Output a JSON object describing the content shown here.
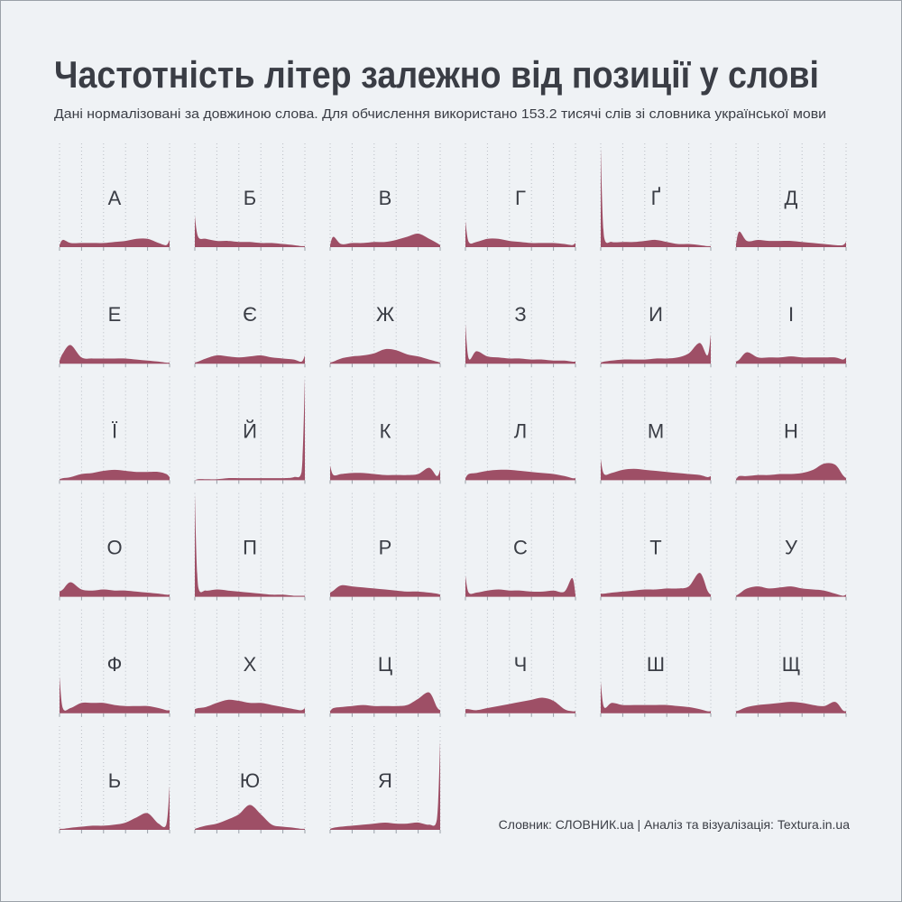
{
  "chart_data": {
    "type": "area",
    "title": "Частотність літер залежно від позиції у слові",
    "subtitle": "Дані нормалізовані за довжиною слова. Для обчислення використано 153.2 тисячі слів зі словника української мови",
    "caption": "Словник: СЛОВНИК.ua | Аналіз та візуалізація: Textura.in.ua",
    "color": "#9e4f66",
    "grid": true,
    "xlim": [
      0,
      1
    ],
    "ylim": [
      0,
      1
    ],
    "xticks": [
      0,
      0.2,
      0.4,
      0.6,
      0.8,
      1
    ],
    "x": [
      0,
      0.03,
      0.1,
      0.2,
      0.3,
      0.4,
      0.5,
      0.6,
      0.7,
      0.8,
      0.9,
      0.97,
      1
    ],
    "series": [
      {
        "name": "А",
        "values": [
          0.02,
          0.07,
          0.04,
          0.04,
          0.04,
          0.04,
          0.05,
          0.06,
          0.08,
          0.08,
          0.04,
          0.02,
          0.07
        ]
      },
      {
        "name": "Б",
        "values": [
          0.3,
          0.1,
          0.08,
          0.06,
          0.06,
          0.05,
          0.05,
          0.04,
          0.04,
          0.03,
          0.02,
          0.01,
          0.01
        ]
      },
      {
        "name": "В",
        "values": [
          0.02,
          0.1,
          0.03,
          0.04,
          0.04,
          0.05,
          0.05,
          0.07,
          0.1,
          0.13,
          0.08,
          0.04,
          0.02
        ]
      },
      {
        "name": "Г",
        "values": [
          0.25,
          0.05,
          0.05,
          0.08,
          0.08,
          0.06,
          0.05,
          0.04,
          0.04,
          0.04,
          0.03,
          0.02,
          0.04
        ]
      },
      {
        "name": "Ґ",
        "values": [
          0.95,
          0.1,
          0.05,
          0.05,
          0.05,
          0.06,
          0.07,
          0.05,
          0.03,
          0.03,
          0.02,
          0.01,
          0.01
        ]
      },
      {
        "name": "Д",
        "values": [
          0.03,
          0.15,
          0.06,
          0.07,
          0.06,
          0.06,
          0.06,
          0.05,
          0.04,
          0.03,
          0.02,
          0.02,
          0.05
        ]
      },
      {
        "name": "Е",
        "values": [
          0.03,
          0.1,
          0.18,
          0.06,
          0.05,
          0.05,
          0.05,
          0.05,
          0.04,
          0.03,
          0.02,
          0.01,
          0.01
        ]
      },
      {
        "name": "Є",
        "values": [
          0.01,
          0.02,
          0.05,
          0.08,
          0.07,
          0.06,
          0.07,
          0.08,
          0.06,
          0.05,
          0.04,
          0.02,
          0.08
        ]
      },
      {
        "name": "Ж",
        "values": [
          0.01,
          0.02,
          0.05,
          0.07,
          0.08,
          0.1,
          0.14,
          0.13,
          0.09,
          0.07,
          0.04,
          0.02,
          0.01
        ]
      },
      {
        "name": "З",
        "values": [
          0.38,
          0.05,
          0.12,
          0.07,
          0.06,
          0.05,
          0.05,
          0.04,
          0.04,
          0.03,
          0.03,
          0.02,
          0.02
        ]
      },
      {
        "name": "И",
        "values": [
          0.01,
          0.02,
          0.03,
          0.04,
          0.04,
          0.04,
          0.05,
          0.05,
          0.06,
          0.1,
          0.2,
          0.08,
          0.28
        ]
      },
      {
        "name": "І",
        "values": [
          0.02,
          0.04,
          0.11,
          0.06,
          0.06,
          0.06,
          0.07,
          0.06,
          0.06,
          0.06,
          0.06,
          0.04,
          0.06
        ]
      },
      {
        "name": "Ї",
        "values": [
          0.01,
          0.02,
          0.03,
          0.06,
          0.07,
          0.09,
          0.1,
          0.09,
          0.08,
          0.08,
          0.08,
          0.06,
          0.03
        ]
      },
      {
        "name": "Й",
        "values": [
          0,
          0.01,
          0.01,
          0.01,
          0.02,
          0.02,
          0.02,
          0.02,
          0.02,
          0.02,
          0.03,
          0.08,
          0.98
        ]
      },
      {
        "name": "К",
        "values": [
          0.14,
          0.05,
          0.06,
          0.07,
          0.07,
          0.06,
          0.05,
          0.05,
          0.05,
          0.06,
          0.12,
          0.04,
          0.1
        ]
      },
      {
        "name": "Л",
        "values": [
          0.02,
          0.06,
          0.07,
          0.09,
          0.1,
          0.1,
          0.09,
          0.08,
          0.07,
          0.06,
          0.04,
          0.02,
          0.02
        ]
      },
      {
        "name": "М",
        "values": [
          0.2,
          0.06,
          0.07,
          0.1,
          0.11,
          0.1,
          0.09,
          0.08,
          0.07,
          0.06,
          0.05,
          0.03,
          0.04
        ]
      },
      {
        "name": "Н",
        "values": [
          0.01,
          0.04,
          0.04,
          0.05,
          0.05,
          0.06,
          0.06,
          0.07,
          0.1,
          0.16,
          0.15,
          0.05,
          0.02
        ]
      },
      {
        "name": "О",
        "values": [
          0.05,
          0.07,
          0.14,
          0.07,
          0.06,
          0.07,
          0.06,
          0.06,
          0.05,
          0.04,
          0.03,
          0.02,
          0.02
        ]
      },
      {
        "name": "П",
        "values": [
          0.98,
          0.1,
          0.06,
          0.07,
          0.06,
          0.05,
          0.04,
          0.03,
          0.02,
          0.02,
          0.01,
          0.01,
          0.01
        ]
      },
      {
        "name": "Р",
        "values": [
          0.04,
          0.06,
          0.11,
          0.1,
          0.09,
          0.08,
          0.07,
          0.06,
          0.05,
          0.05,
          0.04,
          0.03,
          0.02
        ]
      },
      {
        "name": "С",
        "values": [
          0.2,
          0.04,
          0.04,
          0.06,
          0.07,
          0.06,
          0.06,
          0.05,
          0.05,
          0.06,
          0.05,
          0.18,
          0.02
        ]
      },
      {
        "name": "Т",
        "values": [
          0.03,
          0.03,
          0.04,
          0.05,
          0.06,
          0.07,
          0.07,
          0.08,
          0.08,
          0.1,
          0.23,
          0.06,
          0.02
        ]
      },
      {
        "name": "У",
        "values": [
          0.01,
          0.03,
          0.08,
          0.1,
          0.08,
          0.09,
          0.1,
          0.08,
          0.07,
          0.06,
          0.03,
          0.01,
          0.02
        ]
      },
      {
        "name": "Ф",
        "values": [
          0.35,
          0.05,
          0.05,
          0.1,
          0.1,
          0.1,
          0.08,
          0.07,
          0.07,
          0.07,
          0.05,
          0.03,
          0.03
        ]
      },
      {
        "name": "Х",
        "values": [
          0.04,
          0.05,
          0.06,
          0.1,
          0.13,
          0.12,
          0.1,
          0.1,
          0.08,
          0.06,
          0.04,
          0.03,
          0.05
        ]
      },
      {
        "name": "Ц",
        "values": [
          0.02,
          0.05,
          0.06,
          0.07,
          0.08,
          0.07,
          0.07,
          0.07,
          0.08,
          0.14,
          0.2,
          0.06,
          0.03
        ]
      },
      {
        "name": "Ч",
        "values": [
          0.04,
          0.04,
          0.03,
          0.05,
          0.07,
          0.09,
          0.11,
          0.13,
          0.15,
          0.12,
          0.04,
          0.02,
          0.02
        ]
      },
      {
        "name": "Ш",
        "values": [
          0.3,
          0.06,
          0.1,
          0.08,
          0.08,
          0.08,
          0.08,
          0.08,
          0.07,
          0.06,
          0.04,
          0.02,
          0.02
        ]
      },
      {
        "name": "Щ",
        "values": [
          0.02,
          0.03,
          0.06,
          0.08,
          0.09,
          0.1,
          0.11,
          0.1,
          0.08,
          0.07,
          0.11,
          0.03,
          0.02
        ]
      },
      {
        "name": "Ь",
        "values": [
          0.01,
          0.01,
          0.02,
          0.03,
          0.04,
          0.04,
          0.05,
          0.07,
          0.12,
          0.16,
          0.06,
          0.05,
          0.42
        ]
      },
      {
        "name": "Ю",
        "values": [
          0.01,
          0.02,
          0.04,
          0.06,
          0.1,
          0.15,
          0.24,
          0.15,
          0.05,
          0.03,
          0.02,
          0.01,
          0.01
        ]
      },
      {
        "name": "Я",
        "values": [
          0.01,
          0.02,
          0.03,
          0.04,
          0.05,
          0.06,
          0.07,
          0.06,
          0.06,
          0.07,
          0.05,
          0.1,
          0.85
        ]
      }
    ]
  }
}
